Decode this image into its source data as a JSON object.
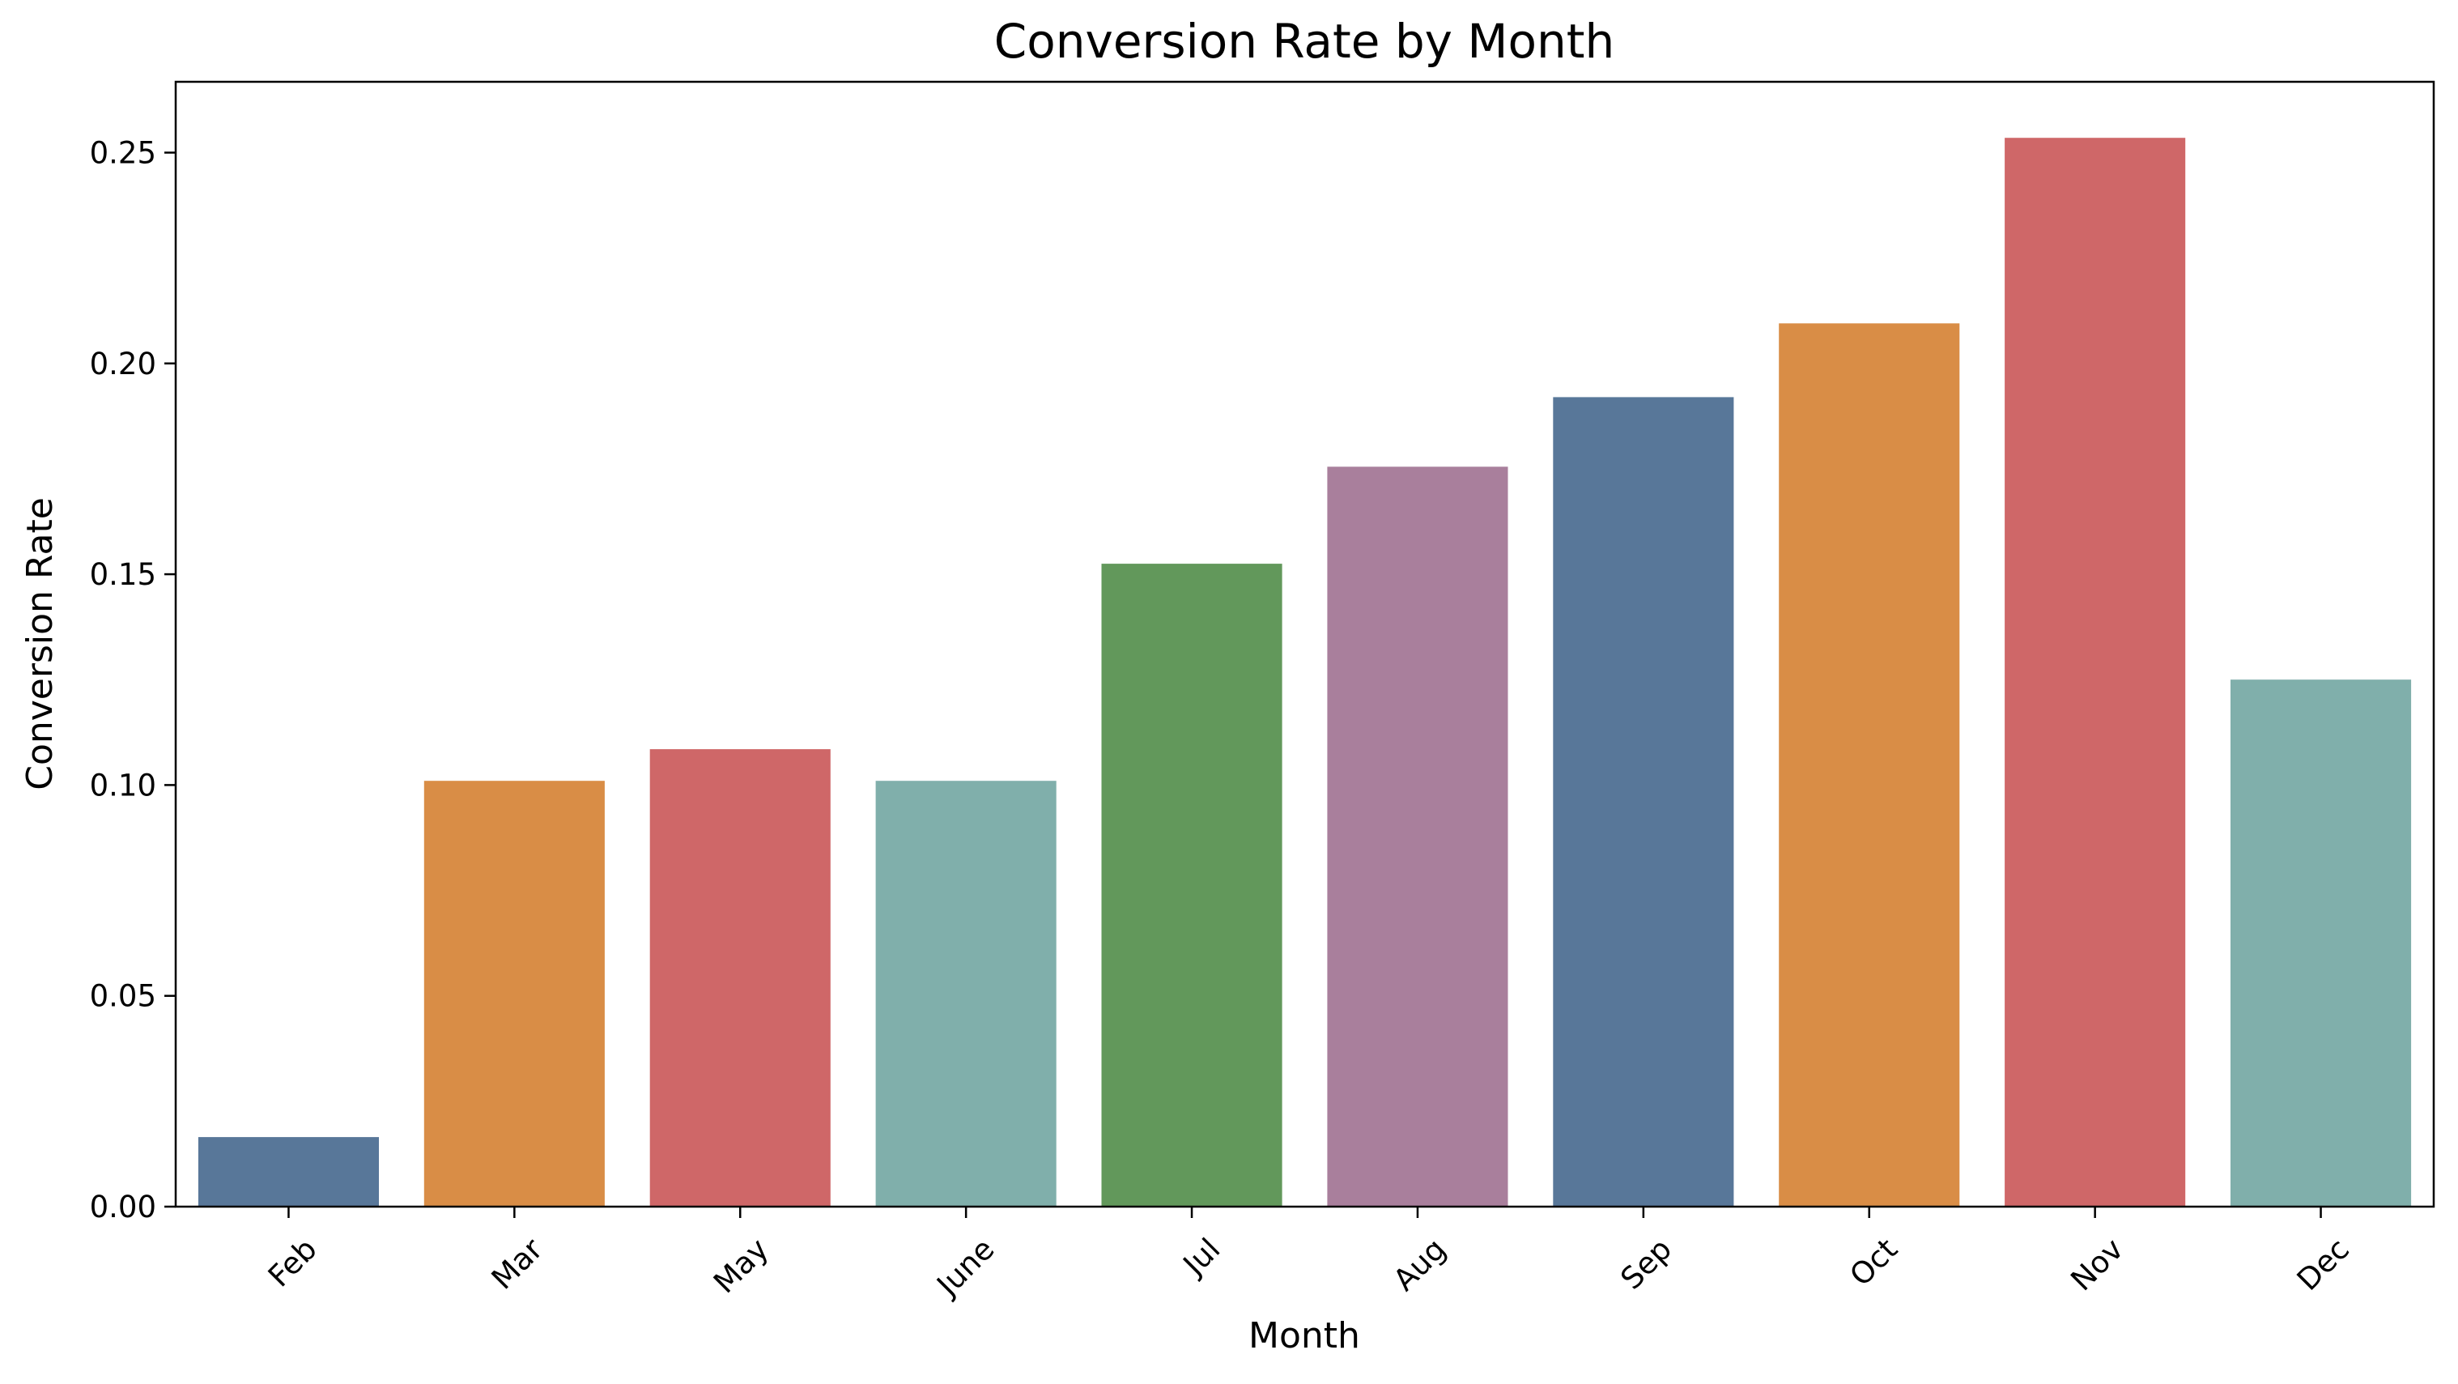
{
  "chart_data": {
    "type": "bar",
    "title": "Conversion Rate by Month",
    "xlabel": "Month",
    "ylabel": "Conversion Rate",
    "categories": [
      "Feb",
      "Mar",
      "May",
      "June",
      "Jul",
      "Aug",
      "Sep",
      "Oct",
      "Nov",
      "Dec"
    ],
    "values": [
      0.0165,
      0.101,
      0.1085,
      0.101,
      0.1525,
      0.1755,
      0.192,
      0.2095,
      0.2535,
      0.125
    ],
    "colors": [
      "#587799",
      "#d98d46",
      "#cf6768",
      "#80afab",
      "#62985b",
      "#a97f9c",
      "#587799",
      "#d98d46",
      "#cf6768",
      "#80afab"
    ],
    "ylim": [
      0,
      0.2668
    ],
    "yticks": [
      "0.00",
      "0.05",
      "0.10",
      "0.15",
      "0.20",
      "0.25"
    ],
    "ytick_values": [
      0,
      0.05,
      0.1,
      0.15,
      0.2,
      0.25
    ],
    "xtick_rotation": 45,
    "grid": false,
    "legend": "none"
  }
}
